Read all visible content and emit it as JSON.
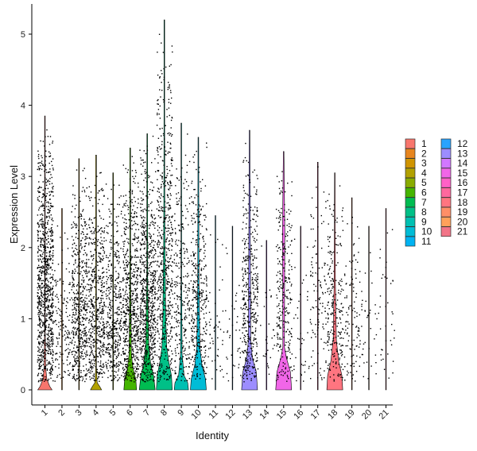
{
  "chart_data": {
    "type": "violin",
    "xlabel": "Identity",
    "ylabel": "Expression Level",
    "ylim": [
      0,
      5.2
    ],
    "yticks": [
      0,
      1,
      2,
      3,
      4,
      5
    ],
    "categories": [
      "1",
      "2",
      "3",
      "4",
      "5",
      "6",
      "7",
      "8",
      "9",
      "10",
      "11",
      "12",
      "13",
      "14",
      "15",
      "16",
      "17",
      "18",
      "19",
      "20",
      "21"
    ],
    "legend_placement": "right",
    "legend_columns": 2,
    "grid": false,
    "colors": [
      "#F8766D",
      "#E7851E",
      "#D09400",
      "#B2A100",
      "#89AC00",
      "#45B500",
      "#00BC51",
      "#00C087",
      "#00C0B2",
      "#00BCD6",
      "#00B3F2",
      "#29A3FF",
      "#9C8DFF",
      "#D277FF",
      "#F166E8",
      "#FF61C7",
      "#FF689E",
      "#FF7580",
      "#FF8F67",
      "#FFA15A",
      "#F27487"
    ],
    "violins": [
      {
        "identity": "1",
        "max": 3.85,
        "cell_density": 1.0,
        "outline": [
          [
            0,
            0.9
          ],
          [
            0.05,
            0.6
          ],
          [
            0.15,
            0.25
          ],
          [
            0.3,
            0.1
          ],
          [
            0.8,
            0.03
          ],
          [
            2.5,
            0.02
          ],
          [
            3.8,
            0.0
          ]
        ]
      },
      {
        "identity": "2",
        "max": 2.55,
        "cell_density": 0.15,
        "outline": [
          [
            0,
            0.0
          ]
        ]
      },
      {
        "identity": "3",
        "max": 3.25,
        "cell_density": 0.55,
        "outline": [
          [
            0,
            0.0
          ]
        ]
      },
      {
        "identity": "4",
        "max": 3.3,
        "cell_density": 0.55,
        "outline": [
          [
            0,
            0.7
          ],
          [
            0.05,
            0.45
          ],
          [
            0.1,
            0.15
          ],
          [
            0.3,
            0.04
          ],
          [
            1.5,
            0.02
          ],
          [
            3.3,
            0.0
          ]
        ]
      },
      {
        "identity": "5",
        "max": 3.05,
        "cell_density": 0.45,
        "outline": [
          [
            0,
            0.0
          ]
        ]
      },
      {
        "identity": "6",
        "max": 3.4,
        "cell_density": 0.7,
        "outline": [
          [
            0,
            0.8
          ],
          [
            0.15,
            0.7
          ],
          [
            0.3,
            0.35
          ],
          [
            0.5,
            0.15
          ],
          [
            1.5,
            0.05
          ],
          [
            3.4,
            0.0
          ]
        ]
      },
      {
        "identity": "7",
        "max": 3.6,
        "cell_density": 0.8,
        "outline": [
          [
            0,
            1.0
          ],
          [
            0.2,
            0.8
          ],
          [
            0.35,
            0.45
          ],
          [
            0.6,
            0.2
          ],
          [
            1.5,
            0.06
          ],
          [
            3.6,
            0.0
          ]
        ]
      },
      {
        "identity": "8",
        "max": 5.2,
        "cell_density": 0.65,
        "outline": [
          [
            0,
            1.0
          ],
          [
            0.2,
            0.9
          ],
          [
            0.4,
            0.55
          ],
          [
            0.6,
            0.3
          ],
          [
            1.0,
            0.18
          ],
          [
            2.0,
            0.08
          ],
          [
            3.0,
            0.05
          ],
          [
            4.0,
            0.03
          ],
          [
            5.2,
            0.0
          ]
        ]
      },
      {
        "identity": "9",
        "max": 3.75,
        "cell_density": 0.3,
        "outline": [
          [
            0,
            0.9
          ],
          [
            0.1,
            0.8
          ],
          [
            0.2,
            0.35
          ],
          [
            0.5,
            0.1
          ],
          [
            1.5,
            0.04
          ],
          [
            3.7,
            0.0
          ]
        ]
      },
      {
        "identity": "10",
        "max": 3.55,
        "cell_density": 0.4,
        "outline": [
          [
            0,
            1.0
          ],
          [
            0.15,
            0.9
          ],
          [
            0.35,
            0.45
          ],
          [
            0.6,
            0.2
          ],
          [
            1.5,
            0.08
          ],
          [
            3.5,
            0.0
          ]
        ]
      },
      {
        "identity": "11",
        "max": 2.45,
        "cell_density": 0.05,
        "outline": [
          [
            0,
            0.0
          ]
        ]
      },
      {
        "identity": "12",
        "max": 2.3,
        "cell_density": 0.04,
        "outline": [
          [
            0,
            0.0
          ]
        ]
      },
      {
        "identity": "13",
        "max": 3.65,
        "cell_density": 0.45,
        "outline": [
          [
            0,
            1.0
          ],
          [
            0.25,
            0.85
          ],
          [
            0.45,
            0.35
          ],
          [
            0.7,
            0.15
          ],
          [
            1.5,
            0.12
          ],
          [
            2.5,
            0.08
          ],
          [
            3.6,
            0.0
          ]
        ]
      },
      {
        "identity": "14",
        "max": 2.1,
        "cell_density": 0.03,
        "outline": [
          [
            0,
            0.0
          ]
        ]
      },
      {
        "identity": "15",
        "max": 3.35,
        "cell_density": 0.3,
        "outline": [
          [
            0,
            1.0
          ],
          [
            0.25,
            0.85
          ],
          [
            0.45,
            0.35
          ],
          [
            0.6,
            0.1
          ],
          [
            1.5,
            0.12
          ],
          [
            2.2,
            0.15
          ],
          [
            3.3,
            0.0
          ]
        ]
      },
      {
        "identity": "16",
        "max": 2.3,
        "cell_density": 0.04,
        "outline": [
          [
            0,
            0.0
          ]
        ]
      },
      {
        "identity": "17",
        "max": 3.2,
        "cell_density": 0.12,
        "outline": [
          [
            0,
            0.0
          ]
        ]
      },
      {
        "identity": "18",
        "max": 3.05,
        "cell_density": 0.25,
        "outline": [
          [
            0,
            1.0
          ],
          [
            0.2,
            0.9
          ],
          [
            0.4,
            0.5
          ],
          [
            0.7,
            0.2
          ],
          [
            1.5,
            0.08
          ],
          [
            2.2,
            0.05
          ],
          [
            3.0,
            0.0
          ]
        ]
      },
      {
        "identity": "19",
        "max": 2.7,
        "cell_density": 0.12,
        "outline": [
          [
            0,
            0.0
          ]
        ]
      },
      {
        "identity": "20",
        "max": 2.3,
        "cell_density": 0.04,
        "outline": [
          [
            0,
            0.0
          ]
        ]
      },
      {
        "identity": "21",
        "max": 2.55,
        "cell_density": 0.04,
        "outline": [
          [
            0,
            0.0
          ]
        ]
      }
    ]
  }
}
